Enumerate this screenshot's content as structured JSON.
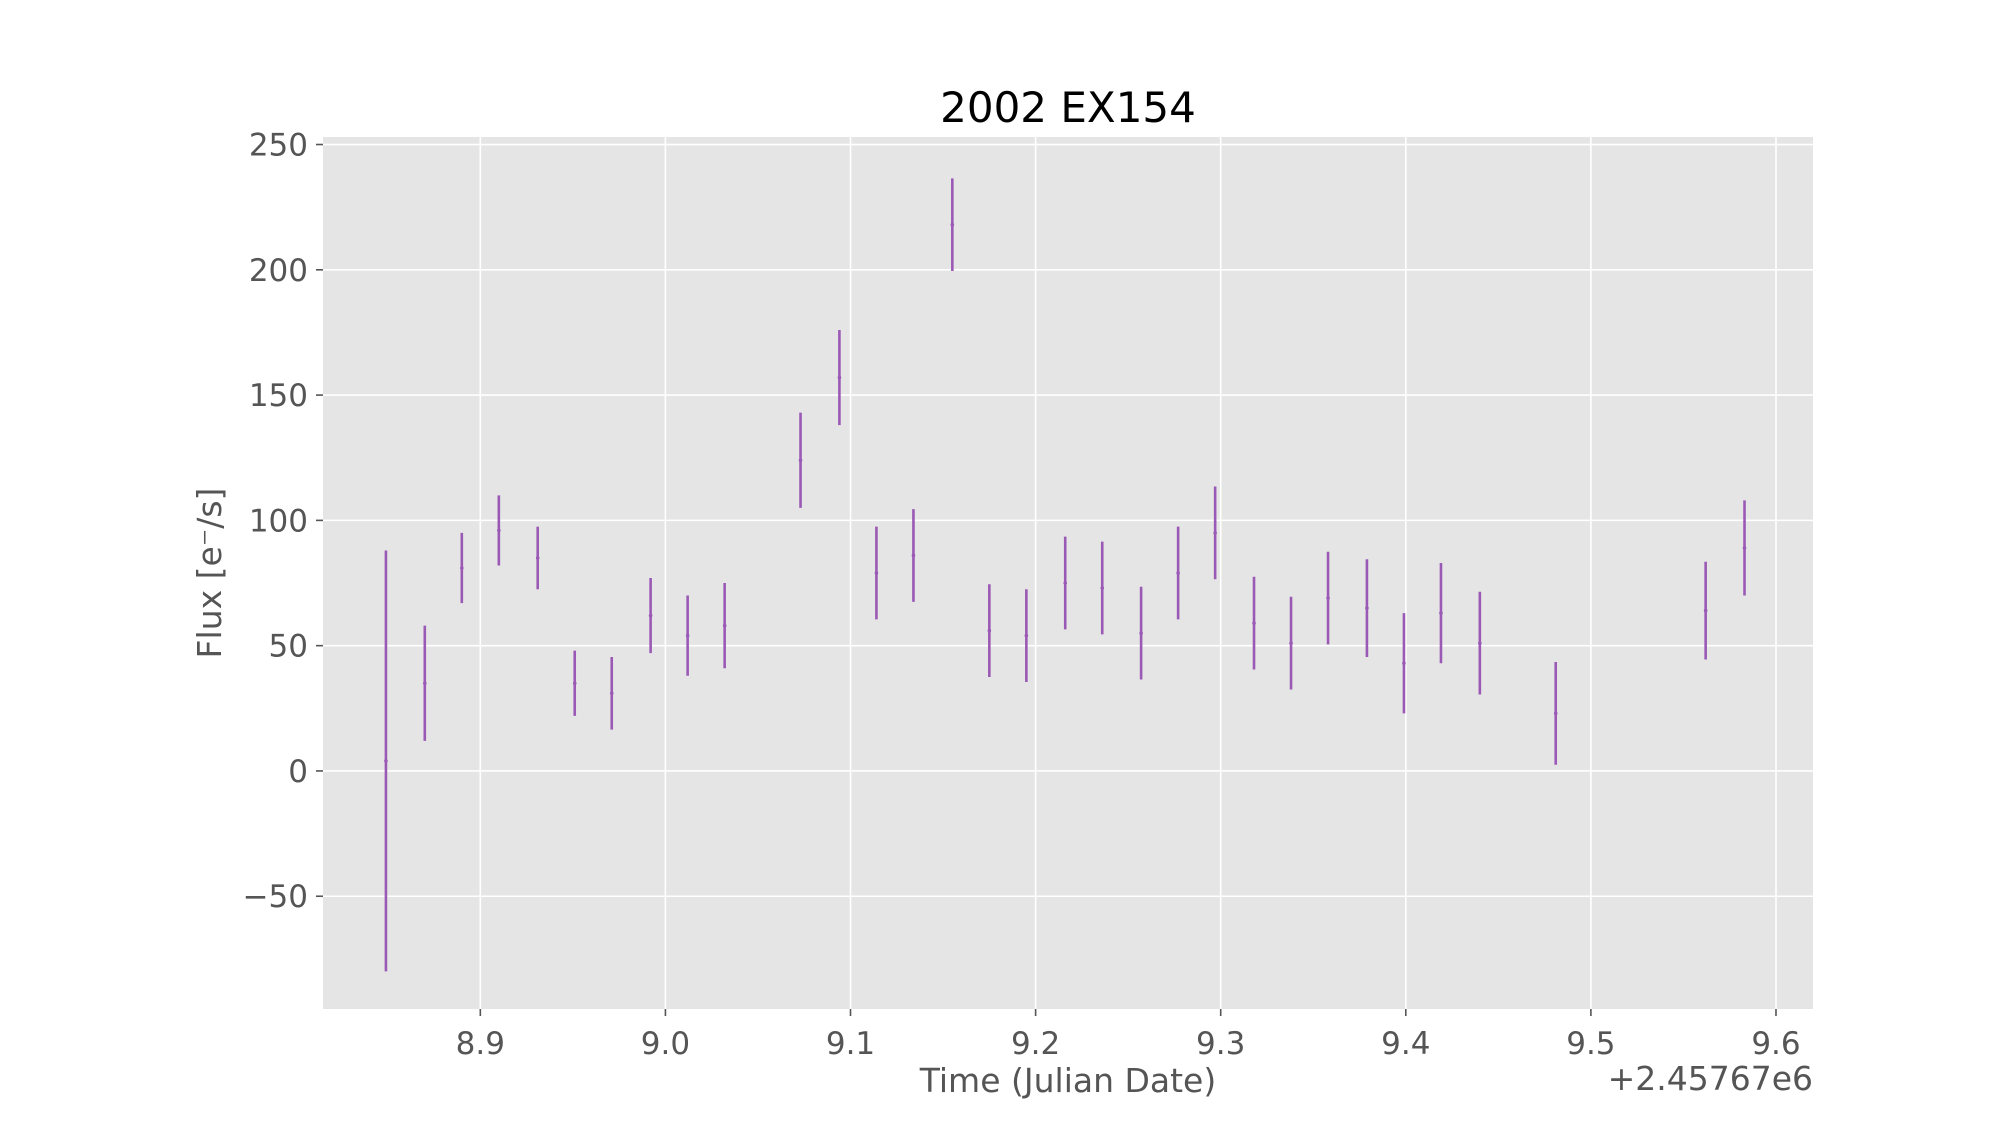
{
  "chart_data": {
    "type": "errorbar",
    "title": "2002 EX154",
    "xlabel": "Time (Julian Date)",
    "ylabel": "Flux [e⁻/s]",
    "x_offset_label": "+2.45767e6",
    "x_offset": 2457670,
    "xlim": [
      8.815,
      9.62
    ],
    "ylim": [
      -95,
      253
    ],
    "xticks": [
      8.9,
      9.0,
      9.1,
      9.2,
      9.3,
      9.4,
      9.5,
      9.6
    ],
    "xtick_labels": [
      "8.9",
      "9.0",
      "9.1",
      "9.2",
      "9.3",
      "9.4",
      "9.5",
      "9.6"
    ],
    "yticks": [
      -50,
      0,
      50,
      100,
      150,
      200,
      250
    ],
    "ytick_labels": [
      "−50",
      "0",
      "50",
      "100",
      "150",
      "200",
      "250"
    ],
    "grid": true,
    "style": "ggplot",
    "color": "#9b59b6",
    "points": [
      {
        "x": 8.849,
        "y": 4,
        "err": 84
      },
      {
        "x": 8.87,
        "y": 35,
        "err": 23
      },
      {
        "x": 8.89,
        "y": 81,
        "err": 14
      },
      {
        "x": 8.91,
        "y": 96,
        "err": 14
      },
      {
        "x": 8.931,
        "y": 85,
        "err": 12.5
      },
      {
        "x": 8.951,
        "y": 35,
        "err": 13
      },
      {
        "x": 8.971,
        "y": 31,
        "err": 14.5
      },
      {
        "x": 8.992,
        "y": 62,
        "err": 15
      },
      {
        "x": 9.012,
        "y": 54,
        "err": 16
      },
      {
        "x": 9.032,
        "y": 58,
        "err": 17
      },
      {
        "x": 9.073,
        "y": 124,
        "err": 19
      },
      {
        "x": 9.094,
        "y": 157,
        "err": 19
      },
      {
        "x": 9.114,
        "y": 79,
        "err": 18.5
      },
      {
        "x": 9.134,
        "y": 86,
        "err": 18.5
      },
      {
        "x": 9.155,
        "y": 218,
        "err": 18.5
      },
      {
        "x": 9.175,
        "y": 56,
        "err": 18.5
      },
      {
        "x": 9.195,
        "y": 54,
        "err": 18.5
      },
      {
        "x": 9.216,
        "y": 75,
        "err": 18.5
      },
      {
        "x": 9.236,
        "y": 73,
        "err": 18.5
      },
      {
        "x": 9.257,
        "y": 55,
        "err": 18.5
      },
      {
        "x": 9.277,
        "y": 79,
        "err": 18.5
      },
      {
        "x": 9.297,
        "y": 95,
        "err": 18.5
      },
      {
        "x": 9.318,
        "y": 59,
        "err": 18.5
      },
      {
        "x": 9.338,
        "y": 51,
        "err": 18.5
      },
      {
        "x": 9.358,
        "y": 69,
        "err": 18.5
      },
      {
        "x": 9.379,
        "y": 65,
        "err": 19.5
      },
      {
        "x": 9.399,
        "y": 43,
        "err": 20
      },
      {
        "x": 9.419,
        "y": 63,
        "err": 20
      },
      {
        "x": 9.44,
        "y": 51,
        "err": 20.5
      },
      {
        "x": 9.481,
        "y": 23,
        "err": 20.5
      },
      {
        "x": 9.562,
        "y": 64,
        "err": 19.5
      },
      {
        "x": 9.583,
        "y": 89,
        "err": 19
      }
    ]
  }
}
